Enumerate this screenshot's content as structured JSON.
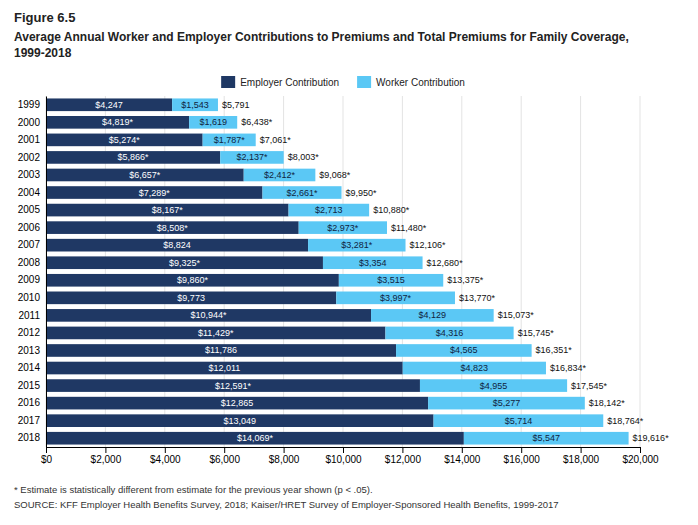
{
  "chart_data": {
    "type": "bar",
    "orientation": "horizontal",
    "stacked": true,
    "data_labels": true,
    "grid": true,
    "legend": "top",
    "title": "Figure 6.5",
    "subtitle": "Average Annual Worker and Employer Contributions to Premiums and Total Premiums for Family Coverage, 1999-2018",
    "annotations": [
      "* Estimate is statistically different from estimate for the previous year shown (p < .05).",
      "SOURCE: KFF Employer Health Benefits Survey, 2018; Kaiser/HRET Survey of Employer-Sponsored Health Benefits, 1999-2017"
    ],
    "categories": [
      "1999",
      "2000",
      "2001",
      "2002",
      "2003",
      "2004",
      "2005",
      "2006",
      "2007",
      "2008",
      "2009",
      "2010",
      "2011",
      "2012",
      "2013",
      "2014",
      "2015",
      "2016",
      "2017",
      "2018"
    ],
    "series": [
      {
        "name": "Employer Contribution",
        "color": "#1f3864",
        "values": [
          4247,
          4819,
          5274,
          5866,
          6657,
          7289,
          8167,
          8508,
          8824,
          9325,
          9860,
          9773,
          10944,
          11429,
          11786,
          12011,
          12591,
          12865,
          13049,
          14069
        ],
        "value_labels": [
          "$4,247",
          "$4,819*",
          "$5,274*",
          "$5,866*",
          "$6,657*",
          "$7,289*",
          "$8,167*",
          "$8,508*",
          "$8,824",
          "$9,325*",
          "$9,860*",
          "$9,773",
          "$10,944*",
          "$11,429*",
          "$11,786",
          "$12,011",
          "$12,591*",
          "$12,865",
          "$13,049",
          "$14,069*"
        ]
      },
      {
        "name": "Worker Contribution",
        "color": "#5bc8f5",
        "values": [
          1543,
          1619,
          1787,
          2137,
          2412,
          2661,
          2713,
          2973,
          3281,
          3354,
          3515,
          3997,
          4129,
          4316,
          4565,
          4823,
          4955,
          5277,
          5714,
          5547
        ],
        "value_labels": [
          "$1,543",
          "$1,619",
          "$1,787*",
          "$2,137*",
          "$2,412*",
          "$2,661*",
          "$2,713",
          "$2,973*",
          "$3,281*",
          "$3,354",
          "$3,515",
          "$3,997*",
          "$4,129",
          "$4,316",
          "$4,565",
          "$4,823",
          "$4,955",
          "$5,277",
          "$5,714",
          "$5,547"
        ]
      }
    ],
    "totals": [
      5791,
      6438,
      7061,
      8003,
      9068,
      9950,
      10880,
      11480,
      12106,
      12680,
      13375,
      13770,
      15073,
      15745,
      16351,
      16834,
      17545,
      18142,
      18764,
      19616
    ],
    "total_labels": [
      "$5,791",
      "$6,438*",
      "$7,061*",
      "$8,003*",
      "$9,068*",
      "$9,950*",
      "$10,880*",
      "$11,480*",
      "$12,106*",
      "$12,680*",
      "$13,375*",
      "$13,770*",
      "$15,073*",
      "$15,745*",
      "$16,351*",
      "$16,834*",
      "$17,545*",
      "$18,142*",
      "$18,764*",
      "$19,616*"
    ],
    "xlim": [
      0,
      20000
    ],
    "xticks": [
      {
        "value": 0,
        "label": "$0"
      },
      {
        "value": 2000,
        "label": "$2,000"
      },
      {
        "value": 4000,
        "label": "$4,000"
      },
      {
        "value": 6000,
        "label": "$6,000"
      },
      {
        "value": 8000,
        "label": "$8,000"
      },
      {
        "value": 10000,
        "label": "$10,000"
      },
      {
        "value": 12000,
        "label": "$12,000"
      },
      {
        "value": 14000,
        "label": "$14,000"
      },
      {
        "value": 16000,
        "label": "$16,000"
      },
      {
        "value": 18000,
        "label": "$18,000"
      },
      {
        "value": 20000,
        "label": "$20,000"
      }
    ]
  }
}
